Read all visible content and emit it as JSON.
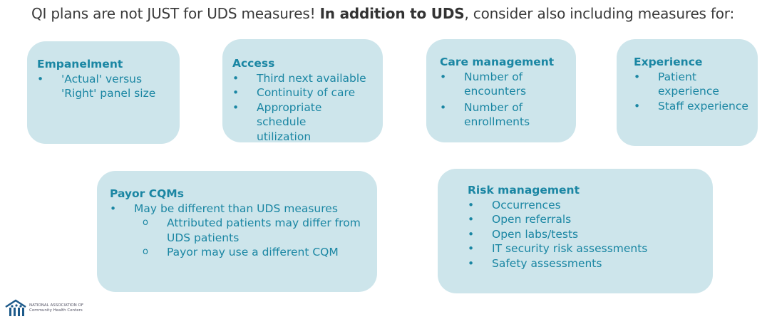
{
  "title": {
    "pre": "QI plans are not JUST for UDS measures! ",
    "bold": "In addition to UDS",
    "post": ", consider also including measures for:"
  },
  "boxes": {
    "empanelment": {
      "heading": "Empanelment",
      "items": [
        "'Actual' versus 'Right' panel size"
      ]
    },
    "access": {
      "heading": "Access",
      "items": [
        "Third next available",
        "Continuity of care",
        "Appropriate schedule utilization"
      ]
    },
    "care": {
      "heading": "Care management",
      "items": [
        "Number of encounters",
        "Number of  enrollments"
      ]
    },
    "experience": {
      "heading": "Experience",
      "items": [
        "Patient experience",
        "Staff experience"
      ]
    },
    "payor": {
      "heading": "Payor CQMs",
      "items": [
        "May be different than UDS measures"
      ],
      "subitems": [
        "Attributed patients may differ from UDS patients",
        "Payor may use a different CQM"
      ]
    },
    "risk": {
      "heading": "Risk management",
      "items": [
        "Occurrences",
        "Open referrals",
        "Open labs/tests",
        "IT security risk assessments",
        "Safety assessments"
      ]
    }
  },
  "logo": {
    "line1": "NATIONAL ASSOCIATION OF",
    "line2": "Community Health Centers"
  },
  "colors": {
    "box": "#cde5eb",
    "text": "#1a86a3",
    "logo": "#1d5a8a"
  }
}
